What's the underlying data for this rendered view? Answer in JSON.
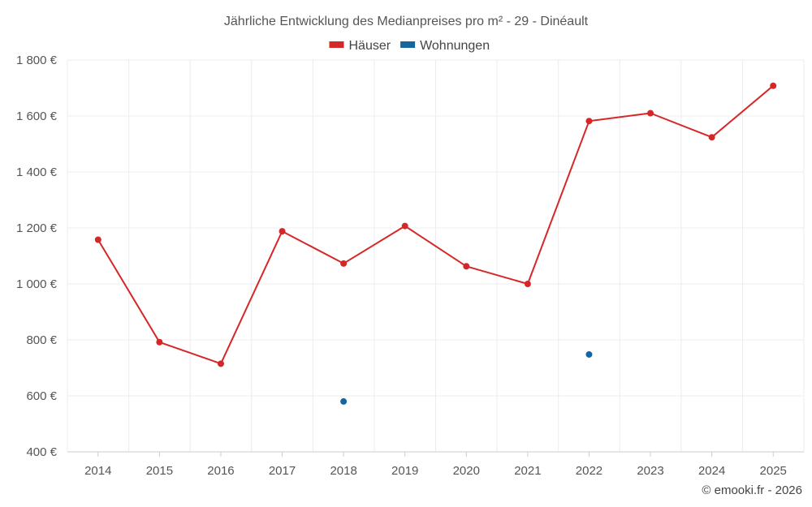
{
  "chart_data": {
    "type": "line",
    "title": "Jährliche Entwicklung des Medianpreises pro m² - 29 - Dinéault",
    "categories": [
      "2014",
      "2015",
      "2016",
      "2017",
      "2018",
      "2019",
      "2020",
      "2021",
      "2022",
      "2023",
      "2024",
      "2025"
    ],
    "series": [
      {
        "name": "Häuser",
        "color": "#d62728",
        "values": [
          1158,
          792,
          715,
          1188,
          1073,
          1207,
          1063,
          1000,
          1582,
          1610,
          1524,
          1708
        ]
      },
      {
        "name": "Wohnungen",
        "color": "#1565a0",
        "values": [
          null,
          null,
          null,
          null,
          580,
          null,
          null,
          null,
          748,
          null,
          null,
          null
        ]
      }
    ],
    "ylim": [
      400,
      1800
    ],
    "yticks": [
      400,
      600,
      800,
      1000,
      1200,
      1400,
      1600,
      1800
    ],
    "ytick_labels": [
      "400 €",
      "600 €",
      "800 €",
      "1 000 €",
      "1 200 €",
      "1 400 €",
      "1 600 €",
      "1 800 €"
    ],
    "xlabel": "",
    "ylabel": "",
    "legend_position": "top-center",
    "grid": true
  },
  "credit": "© emooki.fr - 2026"
}
